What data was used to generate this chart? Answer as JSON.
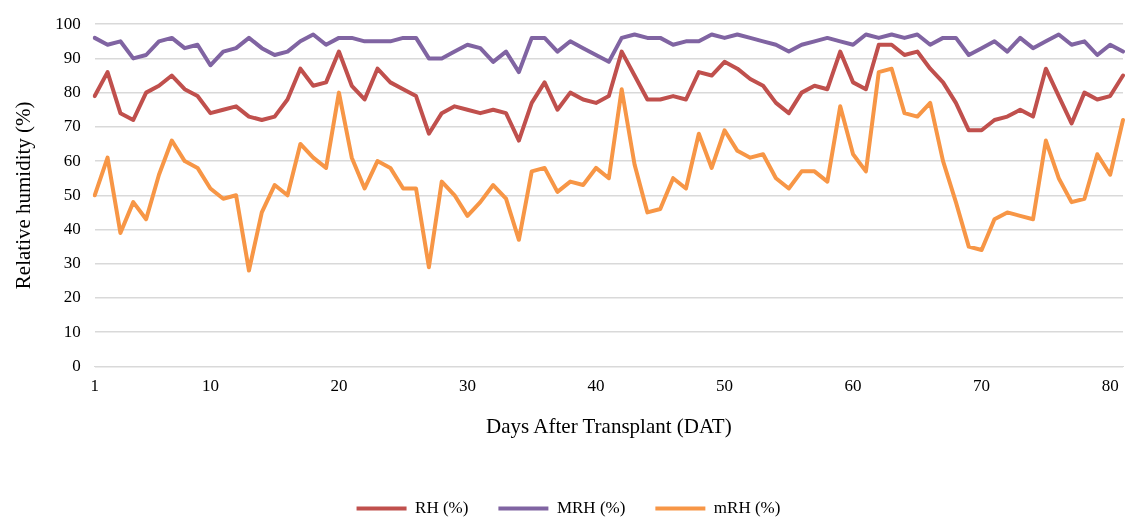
{
  "chart_data": {
    "type": "line",
    "xlabel": "Days After Transplant (DAT)",
    "ylabel": "Relative humidity (%)",
    "categories": [
      "1",
      null,
      null,
      null,
      null,
      null,
      null,
      null,
      null,
      "10",
      null,
      null,
      null,
      null,
      null,
      null,
      null,
      null,
      null,
      "20",
      null,
      null,
      null,
      null,
      null,
      null,
      null,
      null,
      null,
      "30",
      null,
      null,
      null,
      null,
      null,
      null,
      null,
      null,
      null,
      "40",
      null,
      null,
      null,
      null,
      null,
      null,
      null,
      null,
      null,
      "50",
      null,
      null,
      null,
      null,
      null,
      null,
      null,
      null,
      null,
      "60",
      null,
      null,
      null,
      null,
      null,
      null,
      null,
      null,
      null,
      "70",
      null,
      null,
      null,
      null,
      null,
      null,
      null,
      null,
      null,
      "80",
      null
    ],
    "series": [
      {
        "name": "RH (%)",
        "color": "#c0504d",
        "values": [
          79,
          86,
          74,
          72,
          80,
          82,
          85,
          81,
          79,
          74,
          75,
          76,
          73,
          72,
          73,
          78,
          87,
          82,
          83,
          92,
          82,
          78,
          87,
          83,
          81,
          79,
          68,
          74,
          76,
          75,
          74,
          75,
          74,
          66,
          77,
          83,
          75,
          80,
          78,
          77,
          79,
          92,
          85,
          78,
          78,
          79,
          78,
          86,
          85,
          89,
          87,
          84,
          82,
          77,
          74,
          80,
          82,
          81,
          92,
          83,
          81,
          94,
          94,
          91,
          92,
          87,
          83,
          77,
          69,
          69,
          72,
          73,
          75,
          73,
          87,
          79,
          71,
          80,
          78,
          79,
          85
        ]
      },
      {
        "name": "MRH (%)",
        "color": "#8064a2",
        "values": [
          96,
          94,
          95,
          90,
          91,
          95,
          96,
          93,
          94,
          88,
          92,
          93,
          96,
          93,
          91,
          92,
          95,
          97,
          94,
          96,
          96,
          95,
          95,
          95,
          96,
          96,
          90,
          90,
          92,
          94,
          93,
          89,
          92,
          86,
          96,
          96,
          92,
          95,
          93,
          91,
          89,
          96,
          97,
          96,
          96,
          94,
          95,
          95,
          97,
          96,
          97,
          96,
          95,
          94,
          92,
          94,
          95,
          96,
          95,
          94,
          97,
          96,
          97,
          96,
          97,
          94,
          96,
          96,
          91,
          93,
          95,
          92,
          96,
          93,
          95,
          97,
          94,
          95,
          91,
          94,
          92
        ]
      },
      {
        "name": "mRH (%)",
        "color": "#f79646",
        "values": [
          50,
          61,
          39,
          48,
          43,
          56,
          66,
          60,
          58,
          52,
          49,
          50,
          28,
          45,
          53,
          50,
          65,
          61,
          58,
          80,
          61,
          52,
          60,
          58,
          52,
          52,
          29,
          54,
          50,
          44,
          48,
          53,
          49,
          37,
          57,
          58,
          51,
          54,
          53,
          58,
          55,
          81,
          59,
          45,
          46,
          55,
          52,
          68,
          58,
          69,
          63,
          61,
          62,
          55,
          52,
          57,
          57,
          54,
          76,
          62,
          57,
          86,
          87,
          74,
          73,
          77,
          60,
          48,
          35,
          34,
          43,
          45,
          44,
          43,
          66,
          55,
          48,
          49,
          62,
          56,
          72
        ]
      }
    ],
    "ylim": [
      0,
      100
    ],
    "yticks": [
      0,
      10,
      20,
      30,
      40,
      50,
      60,
      70,
      80,
      90,
      100
    ],
    "grid": "y",
    "legend": "bottom",
    "marker": "none",
    "line_style": "solid"
  }
}
